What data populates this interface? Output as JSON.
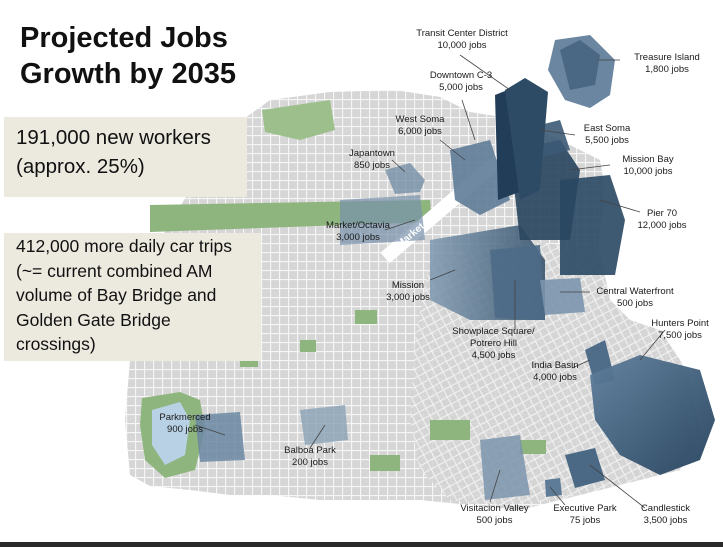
{
  "title": {
    "line1": "Projected Jobs",
    "line2": "Growth by 2035"
  },
  "box_workers": {
    "line1": "191,000 new workers",
    "line2": "(approx. 25%)"
  },
  "box_trips": {
    "line1": "412,000 more daily car trips",
    "line2": "(~= current combined AM",
    "line3": "volume of Bay Bridge and",
    "line4": "Golden Gate Bridge",
    "line5": "crossings)"
  },
  "street": "Market Street",
  "areas": [
    {
      "name": "Transit Center District",
      "jobs": "10,000 jobs"
    },
    {
      "name": "Treasure Island",
      "jobs": "1,800 jobs"
    },
    {
      "name": "Downtown C-3",
      "jobs": "5,000 jobs"
    },
    {
      "name": "West Soma",
      "jobs": "6,000 jobs"
    },
    {
      "name": "East Soma",
      "jobs": "5,500 jobs"
    },
    {
      "name": "Japantown",
      "jobs": "850 jobs"
    },
    {
      "name": "Mission Bay",
      "jobs": "10,000 jobs"
    },
    {
      "name": "Pier 70",
      "jobs": "12,000 jobs"
    },
    {
      "name": "Market/Octavia",
      "jobs": "3,000 jobs"
    },
    {
      "name": "Mission",
      "jobs": "3,000 jobs"
    },
    {
      "name": "Central Waterfront",
      "jobs": "500  jobs"
    },
    {
      "name": "Showplace Square/",
      "name2": "Potrero Hill",
      "jobs": "4,500 jobs"
    },
    {
      "name": "Hunters Point",
      "jobs": "7,500 jobs"
    },
    {
      "name": "India Basin",
      "jobs": "4,000 jobs"
    },
    {
      "name": "Parkmerced",
      "jobs": "900 jobs"
    },
    {
      "name": "Balboa Park",
      "jobs": "200 jobs"
    },
    {
      "name": "Visitacion Valley",
      "jobs": "500 jobs"
    },
    {
      "name": "Executive Park",
      "jobs": "75 jobs"
    },
    {
      "name": "Candlestick",
      "jobs": "3,500 jobs"
    }
  ],
  "colors": {
    "land": "#dcdcdc",
    "park": "#8fb57f",
    "water": "#ffffff",
    "tower_dark": "#2c4862",
    "tower_mid": "#5d7a95",
    "tower_light": "#8ea6bb",
    "box_bg": "#ece9df"
  }
}
